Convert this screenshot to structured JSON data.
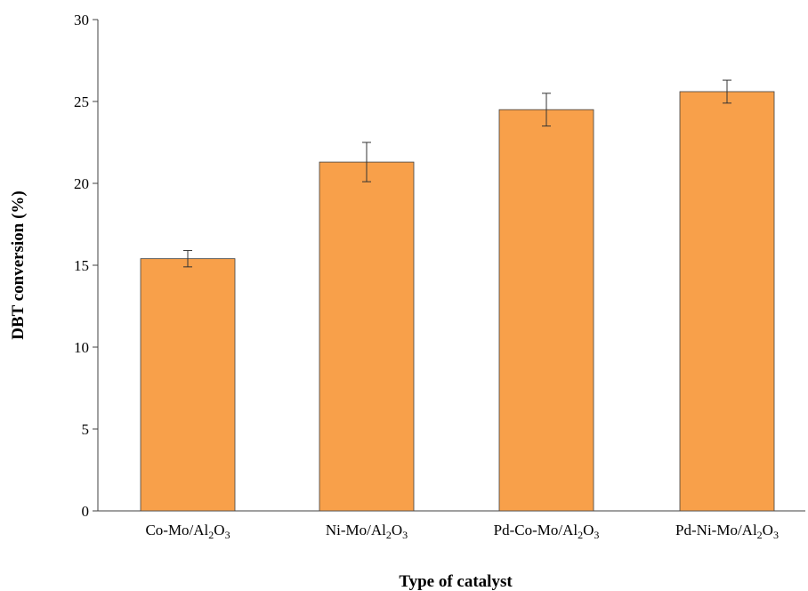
{
  "chart_data": {
    "type": "bar",
    "title": "",
    "xlabel": "Type of catalyst",
    "ylabel": "DBT conversion (%)",
    "ylim": [
      0,
      30
    ],
    "yticks": [
      0,
      5,
      10,
      15,
      20,
      25,
      30
    ],
    "grid": false,
    "legend": "none",
    "categories": [
      "Co-Mo/Al2O3",
      "Ni-Mo/Al2O3",
      "Pd-Co-Mo/Al2O3",
      "Pd-Ni-Mo/Al2O3"
    ],
    "category_parts": [
      [
        "Co-Mo/Al",
        "2",
        "O",
        "3"
      ],
      [
        "Ni-Mo/Al",
        "2",
        "O",
        "3"
      ],
      [
        "Pd-Co-Mo/Al",
        "2",
        "O",
        "3"
      ],
      [
        "Pd-Ni-Mo/Al",
        "2",
        "O",
        "3"
      ]
    ],
    "values": [
      15.4,
      21.3,
      24.5,
      25.6
    ],
    "error_bars": [
      0.5,
      1.2,
      1.0,
      0.7
    ],
    "colors": {
      "bar_fill": "#F8A04A",
      "bar_stroke": "#404040",
      "axis": "#404040"
    }
  }
}
